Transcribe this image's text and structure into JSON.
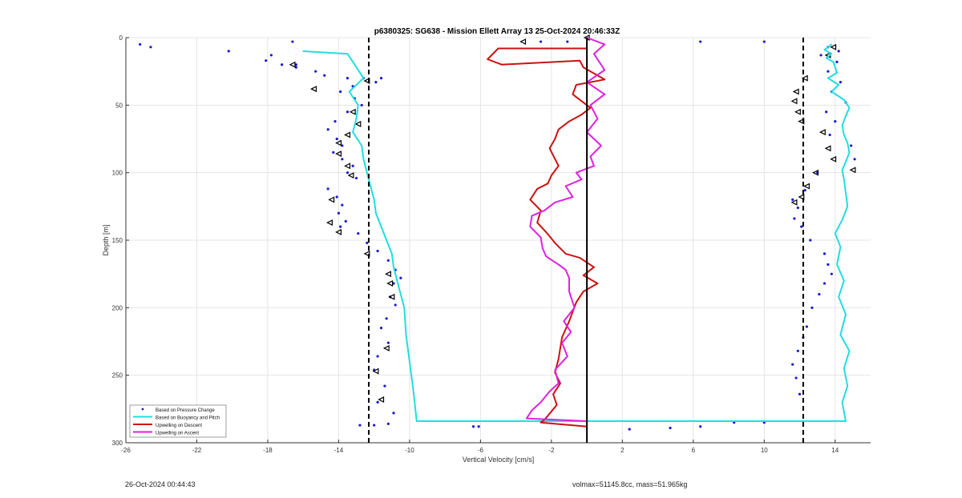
{
  "chart_data": {
    "type": "line",
    "title": "p6380325: SG638 - Mission Ellett Array 13 25-Oct-2024 20:46:33Z",
    "xlabel": "Vertical Velocity [cm/s]",
    "ylabel": "Depth [m]",
    "xlim": [
      -26,
      16
    ],
    "ylim": [
      0,
      300
    ],
    "y_reversed": true,
    "x_ticks": [
      -26,
      -22,
      -18,
      -14,
      -10,
      -6,
      -2,
      2,
      6,
      10,
      14
    ],
    "y_ticks": [
      0,
      50,
      100,
      150,
      200,
      250,
      300
    ],
    "grid": true,
    "legend_position": "bottom-left",
    "vertical_lines": [
      {
        "x": -12.3,
        "style": "dashed",
        "color": "#000000"
      },
      {
        "x": 0,
        "style": "solid",
        "color": "#000000"
      },
      {
        "x": 12.2,
        "style": "dashed",
        "color": "#000000"
      }
    ],
    "series": [
      {
        "name": "Based on Pressure Change",
        "kind": "scatter",
        "color": "#1a1acc",
        "x": [
          -25.2,
          -24.6,
          -16.6,
          -20.2,
          -17.8,
          -18.1,
          -17.2,
          -16.4,
          -15.3,
          -14.8,
          -13.5,
          -12.6,
          -11.6,
          -11.9,
          -13.2,
          -13.9,
          -13.1,
          -12.7,
          -13.5,
          -14.2,
          -14.6,
          -14.1,
          -13.8,
          -14.3,
          -13.8,
          -13.2,
          -13.5,
          -13.0,
          -14.6,
          -14.1,
          -13.8,
          -14.0,
          -13.6,
          -13.9,
          -12.9,
          -12.4,
          -11.8,
          -11.2,
          -10.8,
          -10.5,
          -10.9,
          -11.1,
          -10.8,
          -11.3,
          -11.6,
          -11.2,
          -11.8,
          -12.0,
          -11.4,
          -11.8,
          -10.9,
          -12.0,
          -6.4,
          -16.4,
          -1.1,
          -2.6,
          6.4,
          10.0,
          13.6,
          14.2,
          13.2,
          14.1,
          13.6,
          14.3,
          13.8,
          14.6,
          13.5,
          14.0,
          13.7,
          14.9,
          15.1,
          13.0,
          12.3,
          11.6,
          11.9,
          11.7,
          12.1,
          12.6,
          13.4,
          13.6,
          13.8,
          13.4,
          13.1,
          12.7,
          12.4,
          12.2,
          11.9,
          11.6,
          11.8,
          12.0,
          10.0,
          8.3,
          6.4,
          4.7,
          2.4,
          -6.1,
          -12.8,
          -11.2
        ],
        "y": [
          5,
          7,
          3,
          10,
          13,
          17,
          20,
          22,
          25,
          28,
          30,
          30,
          30,
          33,
          36,
          40,
          45,
          50,
          55,
          62,
          68,
          75,
          80,
          85,
          90,
          95,
          100,
          104,
          112,
          118,
          124,
          130,
          136,
          140,
          145,
          152,
          158,
          165,
          172,
          178,
          182,
          192,
          198,
          208,
          215,
          226,
          236,
          246,
          258,
          270,
          278,
          287,
          288,
          20,
          3,
          3,
          3,
          3,
          7,
          10,
          13,
          18,
          25,
          33,
          40,
          48,
          55,
          62,
          72,
          80,
          90,
          100,
          113,
          120,
          126,
          134,
          140,
          150,
          160,
          168,
          175,
          182,
          190,
          200,
          214,
          222,
          232,
          242,
          252,
          264,
          285,
          285,
          288,
          289,
          290,
          288,
          287,
          286
        ],
        "descent_markers_x": [
          -16.6,
          -15.4,
          -12.4,
          -13.2,
          -12.9,
          -13.5,
          -14.0,
          -14.0,
          -13.5,
          -13.3,
          -14.4,
          -14.5,
          -14.0,
          -12.4,
          -11.2,
          -11.1,
          -11.0,
          -11.3,
          -11.9,
          -11.6,
          -3.6,
          13.9,
          13.6,
          12.3,
          11.8,
          11.7,
          11.9,
          12.1,
          13.3,
          13.6,
          13.9,
          12.9,
          12.4,
          12.1,
          11.7,
          15.0,
          0.0
        ],
        "descent_markers_y": [
          20,
          38,
          32,
          55,
          64,
          72,
          78,
          86,
          95,
          102,
          120,
          137,
          144,
          160,
          175,
          182,
          192,
          230,
          247,
          268,
          3,
          7,
          13,
          30,
          40,
          47,
          55,
          62,
          70,
          82,
          90,
          100,
          110,
          118,
          122,
          98,
          0
        ]
      },
      {
        "name": "Based on Buoyancy and Pitch",
        "kind": "line",
        "color": "#22dde0",
        "x": [
          -16.0,
          -13.5,
          -12.6,
          -13.4,
          -12.9,
          -13.0,
          -13.2,
          -12.7,
          -12.6,
          -12.4,
          -12.2,
          -12.0,
          -11.9,
          -11.6,
          -11.3,
          -11.0,
          -10.9,
          -10.7,
          -10.5,
          -10.3,
          -10.2,
          -10.0,
          -9.8,
          -9.6,
          14.6,
          14.4,
          14.7,
          14.5,
          14.8,
          14.3,
          14.6,
          14.2,
          14.5,
          14.1,
          14.3,
          14.0,
          14.4,
          14.7,
          14.6,
          14.5,
          14.4,
          14.6,
          14.8,
          14.7,
          14.5,
          14.4,
          14.6,
          14.8,
          14.5,
          13.8,
          14.2,
          13.6,
          14.1,
          14.0,
          13.9,
          13.5,
          13.8,
          13.4,
          13.6,
          13.8
        ],
        "y": [
          10,
          12,
          30,
          40,
          50,
          60,
          70,
          80,
          90,
          100,
          110,
          120,
          130,
          140,
          150,
          160,
          170,
          180,
          190,
          200,
          220,
          240,
          260,
          284,
          284,
          270,
          258,
          245,
          232,
          220,
          205,
          192,
          180,
          168,
          155,
          145,
          135,
          125,
          115,
          105,
          98,
          92,
          85,
          78,
          72,
          65,
          58,
          52,
          46,
          40,
          35,
          30,
          26,
          22,
          18,
          15,
          12,
          9,
          7,
          5
        ]
      },
      {
        "name": "Upwelling on Descent",
        "kind": "line",
        "color": "#cc1111",
        "x": [
          0.0,
          -5.0,
          -5.6,
          -4.8,
          -0.4,
          -0.2,
          1.0,
          -0.6,
          -0.8,
          0.2,
          -0.3,
          -1.0,
          -1.6,
          -1.8,
          -2.1,
          -1.6,
          -2.0,
          -2.2,
          -2.8,
          -3.2,
          -2.6,
          -2.8,
          -2.3,
          -1.8,
          -1.2,
          -0.4,
          0.4,
          -0.2,
          0.6,
          -0.2,
          -0.6,
          -1.0,
          -1.4,
          -1.6,
          -1.8,
          -1.5,
          -1.9,
          -1.7,
          -2.2,
          -2.4,
          -2.6,
          0.0
        ],
        "y": [
          8,
          8,
          16,
          20,
          17,
          22,
          31,
          35,
          42,
          52,
          57,
          62,
          68,
          75,
          82,
          95,
          102,
          108,
          112,
          120,
          128,
          137,
          144,
          152,
          160,
          163,
          170,
          176,
          182,
          188,
          196,
          210,
          222,
          238,
          248,
          256,
          264,
          272,
          280,
          283,
          285,
          288
        ]
      },
      {
        "name": "Upwelling on Ascent",
        "kind": "line",
        "color": "#dd22dd",
        "x": [
          0.0,
          1.0,
          0.4,
          1.0,
          0.0,
          1.0,
          0.2,
          0.6,
          0.0,
          0.8,
          0.2,
          0.4,
          -0.6,
          -0.3,
          -1.2,
          -0.8,
          -1.8,
          -2.4,
          -3.1,
          -3.2,
          -2.6,
          -2.5,
          -2.3,
          -1.6,
          -1.2,
          -1.0,
          -1.0,
          -0.7,
          -1.3,
          -0.9,
          -1.4,
          -1.1,
          -1.8,
          -1.6,
          -2.1,
          -2.6,
          -3.1,
          -3.4,
          0.0
        ],
        "y": [
          0,
          5,
          12,
          24,
          33,
          42,
          50,
          60,
          70,
          80,
          88,
          95,
          100,
          105,
          110,
          118,
          122,
          128,
          132,
          140,
          148,
          156,
          162,
          168,
          172,
          178,
          188,
          200,
          210,
          218,
          226,
          236,
          246,
          256,
          262,
          270,
          276,
          282,
          284
        ]
      }
    ],
    "legend": [
      "Based on Pressure Change",
      "Based on Buoyancy and Pitch",
      "Upwelling on Descent",
      "Upwelling on Ascent"
    ]
  },
  "footer": {
    "timestamp": "26-Oct-2024 00:44:43",
    "volmax": "volmax=51145.8cc, mass=51.965kg"
  }
}
